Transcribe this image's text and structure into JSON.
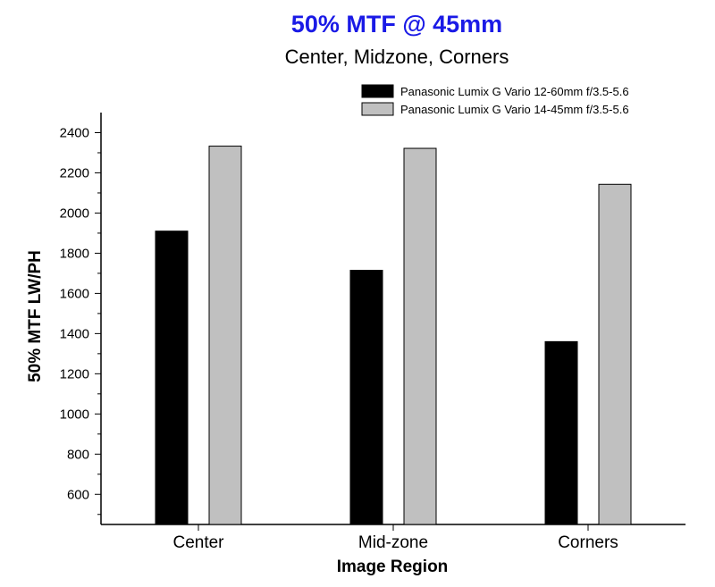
{
  "chart_data": {
    "type": "bar",
    "title": "50% MTF @ 45mm",
    "subtitle": "Center, Midzone, Corners",
    "xlabel": "Image Region",
    "ylabel": "50% MTF LW/PH",
    "categories": [
      "Center",
      "Mid-zone",
      "Corners"
    ],
    "series": [
      {
        "name": "Panasonic Lumix G Vario 12-60mm f/3.5-5.6",
        "values": [
          1910,
          1715,
          1360
        ],
        "color": "#000000"
      },
      {
        "name": "Panasonic Lumix G Vario 14-45mm f/3.5-5.6",
        "values": [
          2333,
          2322,
          2143
        ],
        "color": "#c0c0c0"
      }
    ],
    "ylim": [
      450,
      2500
    ],
    "yticks": [
      600,
      800,
      1000,
      1200,
      1400,
      1600,
      1800,
      2000,
      2200,
      2400
    ],
    "grid": false,
    "legend_position": "top-right",
    "title_color": "#1a1ae6"
  }
}
